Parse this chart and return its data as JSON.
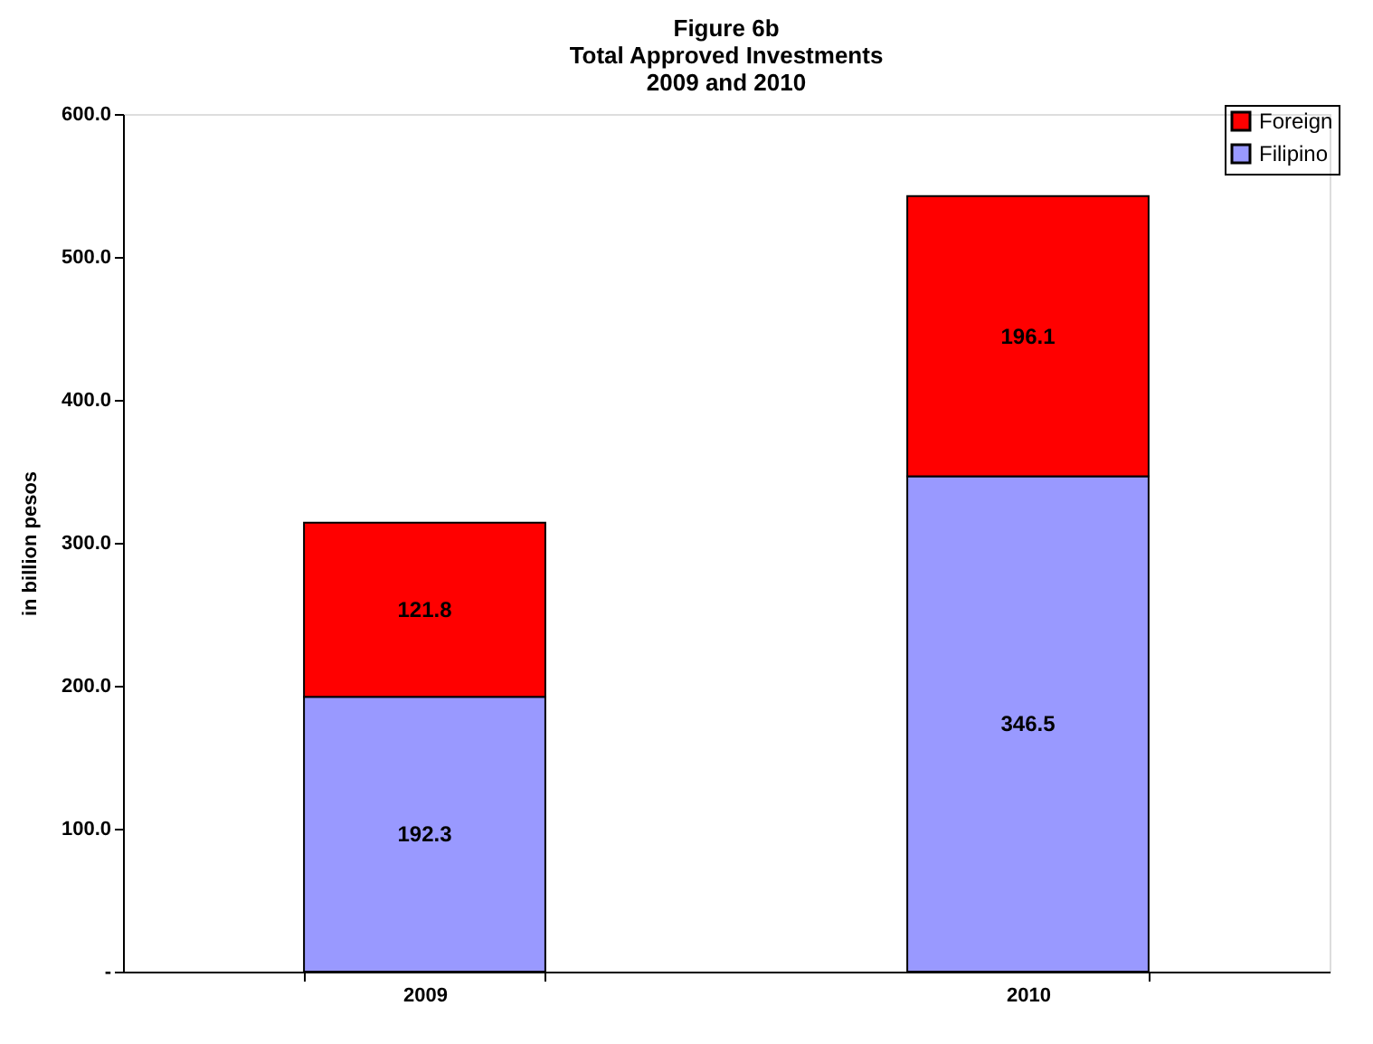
{
  "chart_data": {
    "type": "bar",
    "stacked": true,
    "title": [
      "Figure 6b",
      "Total Approved Investments",
      "2009 and 2010"
    ],
    "ylabel": "in billion pesos",
    "categories": [
      "2009",
      "2010"
    ],
    "series": [
      {
        "name": "Filipino",
        "color": "#9999ff",
        "values": [
          192.3,
          346.5
        ]
      },
      {
        "name": "Foreign",
        "color": "#ff0000",
        "values": [
          121.8,
          196.1
        ]
      }
    ],
    "ylim": [
      0,
      600
    ],
    "yticks": [
      {
        "value": 0,
        "label": "-"
      },
      {
        "value": 100,
        "label": "100.0"
      },
      {
        "value": 200,
        "label": "200.0"
      },
      {
        "value": 300,
        "label": "300.0"
      },
      {
        "value": 400,
        "label": "400.0"
      },
      {
        "value": 500,
        "label": "500.0"
      },
      {
        "value": 600,
        "label": "600.0"
      }
    ],
    "data_labels": true,
    "grid": false,
    "legend": "top right"
  }
}
